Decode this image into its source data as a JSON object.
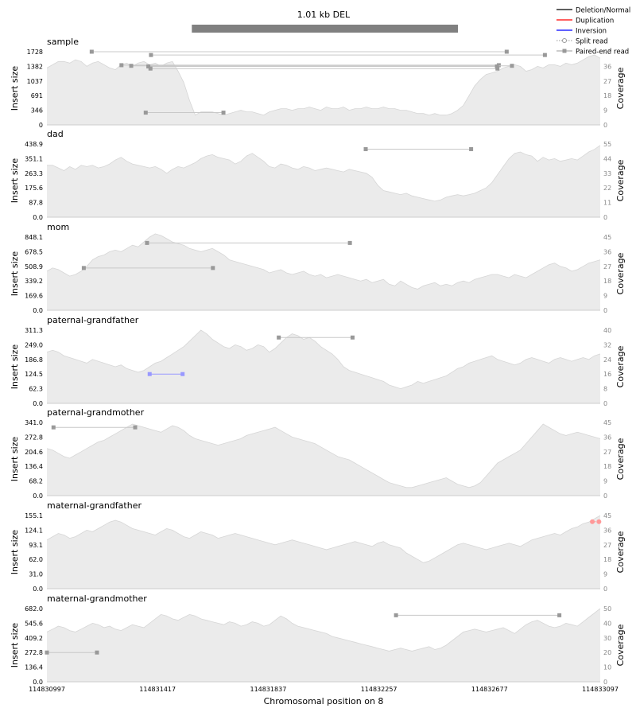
{
  "chart_data": {
    "type": "area",
    "title": "1.01 kb DEL",
    "xlabel": "Chromosomal position on 8",
    "xlim": [
      114830997,
      114833097
    ],
    "x_ticks": [
      "114830997",
      "114831417",
      "114831837",
      "114832257",
      "114832677",
      "114833097"
    ],
    "variant_bar": [
      114831547,
      114832557
    ],
    "colors": {
      "coverage_fill": "#ebebeb",
      "coverage_line": "#d6d6d6",
      "deletion": "#000000",
      "duplication": "#ff0000",
      "inversion": "#0000ff",
      "read_gray": "#999999",
      "read_blue": "#9999ff",
      "read_red": "#ff9999",
      "variant_bar": "#808080"
    },
    "legend": {
      "position": "top-right",
      "entries": [
        {
          "label": "Deletion/Normal",
          "color": "#000000",
          "style": "line"
        },
        {
          "label": "Duplication",
          "color": "#ff0000",
          "style": "line"
        },
        {
          "label": "Inversion",
          "color": "#0000ff",
          "style": "line"
        },
        {
          "label": "Split read",
          "color": "#999999",
          "style": "dotted-circle"
        },
        {
          "label": "Paired-end read",
          "color": "#999999",
          "style": "square"
        }
      ]
    },
    "panels": [
      {
        "name": "sample",
        "ylabel": "Insert size",
        "ylabel2": "Coverage",
        "yticks": [
          "0",
          "346",
          "691",
          "1037",
          "1382",
          "1728"
        ],
        "ymax": 1728,
        "cov_ticks": [
          "0",
          "9",
          "18",
          "27",
          "36",
          "45"
        ],
        "cov_max": 45,
        "coverage": [
          35,
          37,
          39,
          39,
          38,
          40,
          39,
          36,
          38,
          39,
          37,
          35,
          34,
          37,
          38,
          36,
          38,
          39,
          37,
          38,
          36,
          38,
          39,
          33,
          26,
          15,
          6,
          8,
          8,
          8,
          7,
          6,
          7,
          8,
          9,
          8,
          8,
          7,
          6,
          8,
          9,
          10,
          10,
          9,
          10,
          10,
          11,
          10,
          9,
          11,
          10,
          10,
          11,
          9,
          10,
          10,
          11,
          10,
          10,
          11,
          10,
          10,
          9,
          9,
          8,
          7,
          7,
          6,
          7,
          6,
          6,
          7,
          9,
          12,
          18,
          24,
          28,
          31,
          32,
          33,
          35,
          36,
          37,
          36,
          33,
          34,
          36,
          35,
          37,
          37,
          36,
          38,
          37,
          38,
          40,
          42,
          43,
          41
        ],
        "reads": [
          {
            "x1": 114831167,
            "x2": 114832742,
            "y": 1728,
            "color": "gray"
          },
          {
            "x1": 114831392,
            "x2": 114832887,
            "y": 1650,
            "color": "gray"
          },
          {
            "x1": 114831280,
            "x2": 114832712,
            "y": 1410,
            "color": "gray"
          },
          {
            "x1": 114831317,
            "x2": 114832762,
            "y": 1395,
            "color": "gray"
          },
          {
            "x1": 114831382,
            "x2": 114832705,
            "y": 1380,
            "color": "gray"
          },
          {
            "x1": 114831390,
            "x2": 114832707,
            "y": 1330,
            "color": "gray"
          },
          {
            "x1": 114831372,
            "x2": 114831667,
            "y": 290,
            "color": "gray"
          }
        ]
      },
      {
        "name": "dad",
        "ylabel": "Insert size",
        "ylabel2": "Coverage",
        "yticks": [
          "0.0",
          "87.8",
          "175.6",
          "263.3",
          "351.1",
          "438.9"
        ],
        "ymax": 438.9,
        "cov_ticks": [
          "0",
          "11",
          "22",
          "33",
          "44",
          "55"
        ],
        "cov_max": 55,
        "coverage": [
          39,
          39,
          37,
          35,
          38,
          36,
          39,
          38,
          39,
          37,
          38,
          40,
          43,
          45,
          42,
          40,
          39,
          38,
          37,
          38,
          36,
          33,
          36,
          38,
          37,
          39,
          41,
          44,
          46,
          47,
          45,
          44,
          43,
          40,
          42,
          46,
          48,
          45,
          42,
          38,
          37,
          40,
          39,
          37,
          36,
          38,
          37,
          35,
          36,
          37,
          36,
          35,
          34,
          36,
          35,
          34,
          33,
          30,
          24,
          20,
          19,
          18,
          17,
          18,
          16,
          15,
          14,
          13,
          12,
          13,
          15,
          16,
          17,
          16,
          17,
          18,
          20,
          22,
          26,
          32,
          38,
          44,
          48,
          49,
          47,
          46,
          42,
          45,
          43,
          44,
          42,
          43,
          44,
          43,
          46,
          49,
          51,
          54
        ],
        "reads": [
          {
            "x1": 114832207,
            "x2": 114832607,
            "y": 408,
            "color": "gray"
          }
        ]
      },
      {
        "name": "mom",
        "ylabel": "Insert size",
        "ylabel2": "Coverage",
        "yticks": [
          "0.0",
          "169.6",
          "339.2",
          "508.9",
          "678.5",
          "848.1"
        ],
        "ymax": 848.1,
        "cov_ticks": [
          "0",
          "9",
          "18",
          "27",
          "36",
          "45"
        ],
        "cov_max": 45,
        "coverage": [
          24,
          26,
          25,
          23,
          21,
          22,
          24,
          27,
          31,
          33,
          34,
          36,
          37,
          36,
          38,
          40,
          39,
          42,
          45,
          47,
          46,
          44,
          42,
          41,
          40,
          38,
          37,
          36,
          37,
          38,
          36,
          34,
          31,
          30,
          29,
          28,
          27,
          26,
          25,
          23,
          24,
          25,
          23,
          22,
          23,
          24,
          22,
          21,
          22,
          20,
          21,
          22,
          21,
          20,
          19,
          18,
          19,
          17,
          18,
          19,
          16,
          15,
          18,
          16,
          14,
          13,
          15,
          16,
          17,
          15,
          16,
          15,
          17,
          18,
          17,
          19,
          20,
          21,
          22,
          22,
          21,
          20,
          22,
          21,
          20,
          22,
          24,
          26,
          28,
          29,
          27,
          26,
          24,
          25,
          27,
          29,
          30,
          31
        ],
        "reads": [
          {
            "x1": 114831377,
            "x2": 114832147,
            "y": 780,
            "color": "gray"
          },
          {
            "x1": 114831137,
            "x2": 114831627,
            "y": 490,
            "color": "gray"
          }
        ]
      },
      {
        "name": "paternal-grandfather",
        "ylabel": "Insert size",
        "ylabel2": "Coverage",
        "yticks": [
          "0.0",
          "62.3",
          "124.5",
          "186.8",
          "249.0",
          "311.3"
        ],
        "ymax": 311.3,
        "cov_ticks": [
          "0",
          "8",
          "16",
          "24",
          "32",
          "40"
        ],
        "cov_max": 40,
        "coverage": [
          28,
          29,
          28,
          26,
          25,
          24,
          23,
          22,
          24,
          23,
          22,
          21,
          20,
          21,
          19,
          18,
          17,
          18,
          20,
          22,
          23,
          25,
          27,
          29,
          31,
          34,
          37,
          40,
          38,
          35,
          33,
          31,
          30,
          32,
          31,
          29,
          30,
          32,
          31,
          28,
          30,
          33,
          36,
          38,
          37,
          35,
          36,
          34,
          31,
          29,
          27,
          24,
          20,
          18,
          17,
          16,
          15,
          14,
          13,
          12,
          10,
          9,
          8,
          9,
          10,
          12,
          11,
          12,
          13,
          14,
          15,
          17,
          19,
          20,
          22,
          23,
          24,
          25,
          26,
          24,
          23,
          22,
          21,
          22,
          24,
          25,
          24,
          23,
          22,
          24,
          25,
          24,
          23,
          24,
          25,
          24,
          26,
          27
        ],
        "reads": [
          {
            "x1": 114831877,
            "x2": 114832157,
            "y": 280,
            "color": "gray"
          },
          {
            "x1": 114831387,
            "x2": 114831512,
            "y": 124.5,
            "color": "blue"
          }
        ]
      },
      {
        "name": "paternal-grandmother",
        "ylabel": "Insert size",
        "ylabel2": "Coverage",
        "yticks": [
          "0.0",
          "68.2",
          "136.4",
          "204.6",
          "272.8",
          "341.0"
        ],
        "ymax": 341.0,
        "cov_ticks": [
          "0",
          "9",
          "18",
          "27",
          "36",
          "45"
        ],
        "cov_max": 45,
        "coverage": [
          29,
          28,
          26,
          24,
          23,
          25,
          27,
          29,
          31,
          33,
          34,
          36,
          38,
          40,
          42,
          44,
          43,
          42,
          41,
          40,
          39,
          41,
          43,
          42,
          40,
          37,
          35,
          34,
          33,
          32,
          31,
          32,
          33,
          34,
          35,
          37,
          38,
          39,
          40,
          41,
          42,
          40,
          38,
          36,
          35,
          34,
          33,
          32,
          30,
          28,
          26,
          24,
          23,
          22,
          20,
          18,
          16,
          14,
          12,
          10,
          8,
          7,
          6,
          5,
          5,
          6,
          7,
          8,
          9,
          10,
          11,
          9,
          7,
          6,
          5,
          6,
          8,
          12,
          16,
          20,
          22,
          24,
          26,
          28,
          32,
          36,
          40,
          44,
          42,
          40,
          38,
          37,
          38,
          39,
          38,
          37,
          36,
          35
        ],
        "reads": [
          {
            "x1": 114831022,
            "x2": 114831332,
            "y": 318,
            "color": "gray"
          }
        ]
      },
      {
        "name": "maternal-grandfather",
        "ylabel": "Insert size",
        "ylabel2": "Coverage",
        "yticks": [
          "0.0",
          "31.0",
          "62.0",
          "93.1",
          "124.1",
          "155.1"
        ],
        "ymax": 155.1,
        "cov_ticks": [
          "0",
          "9",
          "18",
          "27",
          "36",
          "45"
        ],
        "cov_max": 45,
        "coverage": [
          30,
          32,
          34,
          33,
          31,
          32,
          34,
          36,
          35,
          37,
          39,
          41,
          42,
          41,
          39,
          37,
          36,
          35,
          34,
          33,
          35,
          37,
          36,
          34,
          32,
          31,
          33,
          35,
          34,
          33,
          31,
          32,
          33,
          34,
          33,
          32,
          31,
          30,
          29,
          28,
          27,
          28,
          29,
          30,
          29,
          28,
          27,
          26,
          25,
          24,
          25,
          26,
          27,
          28,
          29,
          28,
          27,
          26,
          28,
          29,
          27,
          26,
          25,
          22,
          20,
          18,
          16,
          17,
          19,
          21,
          23,
          25,
          27,
          28,
          27,
          26,
          25,
          24,
          25,
          26,
          27,
          28,
          27,
          26,
          28,
          30,
          31,
          32,
          33,
          34,
          33,
          35,
          37,
          38,
          40,
          41,
          43,
          45
        ],
        "reads": [
          {
            "x1": 114833067,
            "x2": 114833092,
            "y": 142,
            "color": "red"
          }
        ]
      },
      {
        "name": "maternal-grandmother",
        "ylabel": "Insert size",
        "ylabel2": "Coverage",
        "yticks": [
          "0.0",
          "136.4",
          "272.8",
          "409.2",
          "545.6",
          "682.0"
        ],
        "ymax": 682.0,
        "cov_ticks": [
          "0",
          "10",
          "20",
          "30",
          "40",
          "50"
        ],
        "cov_max": 50,
        "coverage": [
          34,
          36,
          38,
          37,
          35,
          34,
          36,
          38,
          40,
          39,
          37,
          38,
          36,
          35,
          37,
          39,
          38,
          37,
          40,
          43,
          46,
          45,
          43,
          42,
          44,
          46,
          45,
          43,
          42,
          41,
          40,
          39,
          41,
          40,
          38,
          39,
          41,
          40,
          38,
          39,
          42,
          45,
          43,
          40,
          38,
          37,
          36,
          35,
          34,
          33,
          31,
          30,
          29,
          28,
          27,
          26,
          25,
          24,
          23,
          22,
          21,
          22,
          23,
          22,
          21,
          22,
          23,
          24,
          22,
          23,
          25,
          28,
          31,
          34,
          35,
          36,
          35,
          34,
          35,
          36,
          37,
          35,
          33,
          36,
          39,
          41,
          42,
          40,
          38,
          37,
          38,
          40,
          39,
          38,
          41,
          44,
          47,
          50
        ],
        "reads": [
          {
            "x1": 114832322,
            "x2": 114832942,
            "y": 620,
            "color": "gray"
          },
          {
            "x1": 114830997,
            "x2": 114831187,
            "y": 272.8,
            "color": "gray"
          }
        ]
      }
    ]
  }
}
